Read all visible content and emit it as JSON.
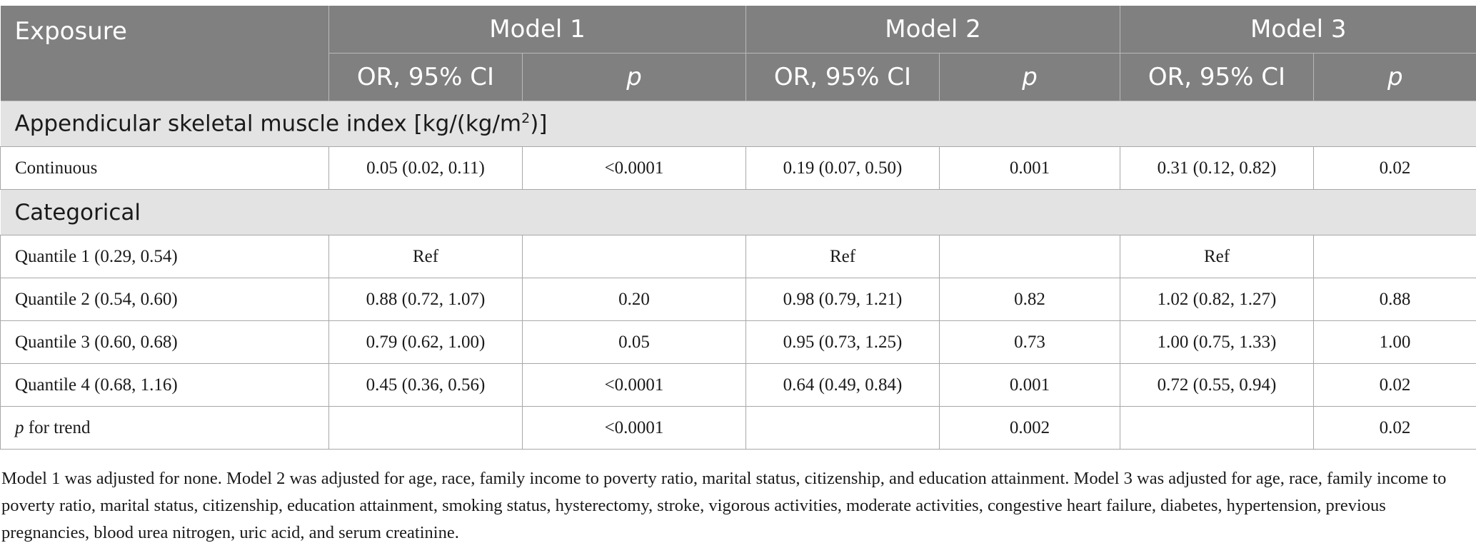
{
  "header": {
    "exposure": "Exposure",
    "models": [
      "Model 1",
      "Model 2",
      "Model 3"
    ],
    "or_label": "OR, 95% CI",
    "p_label": "p"
  },
  "sections": {
    "asmi": {
      "title_prefix": "Appendicular skeletal muscle index [kg/(kg/m",
      "title_sup": "2",
      "title_suffix": ")]"
    },
    "categorical": {
      "title": "Categorical"
    }
  },
  "rows": {
    "continuous": {
      "label": "Continuous",
      "cells": [
        "0.05 (0.02, 0.11)",
        "<0.0001",
        "0.19 (0.07, 0.50)",
        "0.001",
        "0.31 (0.12, 0.82)",
        "0.02"
      ]
    },
    "q1": {
      "label": "Quantile 1 (0.29, 0.54)",
      "cells": [
        "Ref",
        "",
        "Ref",
        "",
        "Ref",
        ""
      ]
    },
    "q2": {
      "label": "Quantile 2 (0.54, 0.60)",
      "cells": [
        "0.88 (0.72, 1.07)",
        "0.20",
        "0.98 (0.79, 1.21)",
        "0.82",
        "1.02 (0.82, 1.27)",
        "0.88"
      ]
    },
    "q3": {
      "label": "Quantile 3 (0.60, 0.68)",
      "cells": [
        "0.79 (0.62, 1.00)",
        "0.05",
        "0.95 (0.73, 1.25)",
        "0.73",
        "1.00 (0.75, 1.33)",
        "1.00"
      ]
    },
    "q4": {
      "label": "Quantile 4 (0.68, 1.16)",
      "cells": [
        "0.45 (0.36, 0.56)",
        "<0.0001",
        "0.64 (0.49, 0.84)",
        "0.001",
        "0.72 (0.55, 0.94)",
        "0.02"
      ]
    },
    "trend": {
      "label_italic": "p",
      "label_rest": " for trend",
      "cells": [
        "",
        "<0.0001",
        "",
        "0.002",
        "",
        "0.02"
      ]
    }
  },
  "footnote": "Model 1 was adjusted for none. Model 2 was adjusted for age, race, family income to poverty ratio, marital status, citizenship, and education attainment. Model 3 was adjusted for age, race, family income to poverty ratio, marital status, citizenship, education attainment, smoking status, hysterectomy, stroke, vigorous activities, moderate activities, congestive heart failure, diabetes, hypertension, previous pregnancies, blood urea nitrogen, uric acid, and serum creatinine."
}
